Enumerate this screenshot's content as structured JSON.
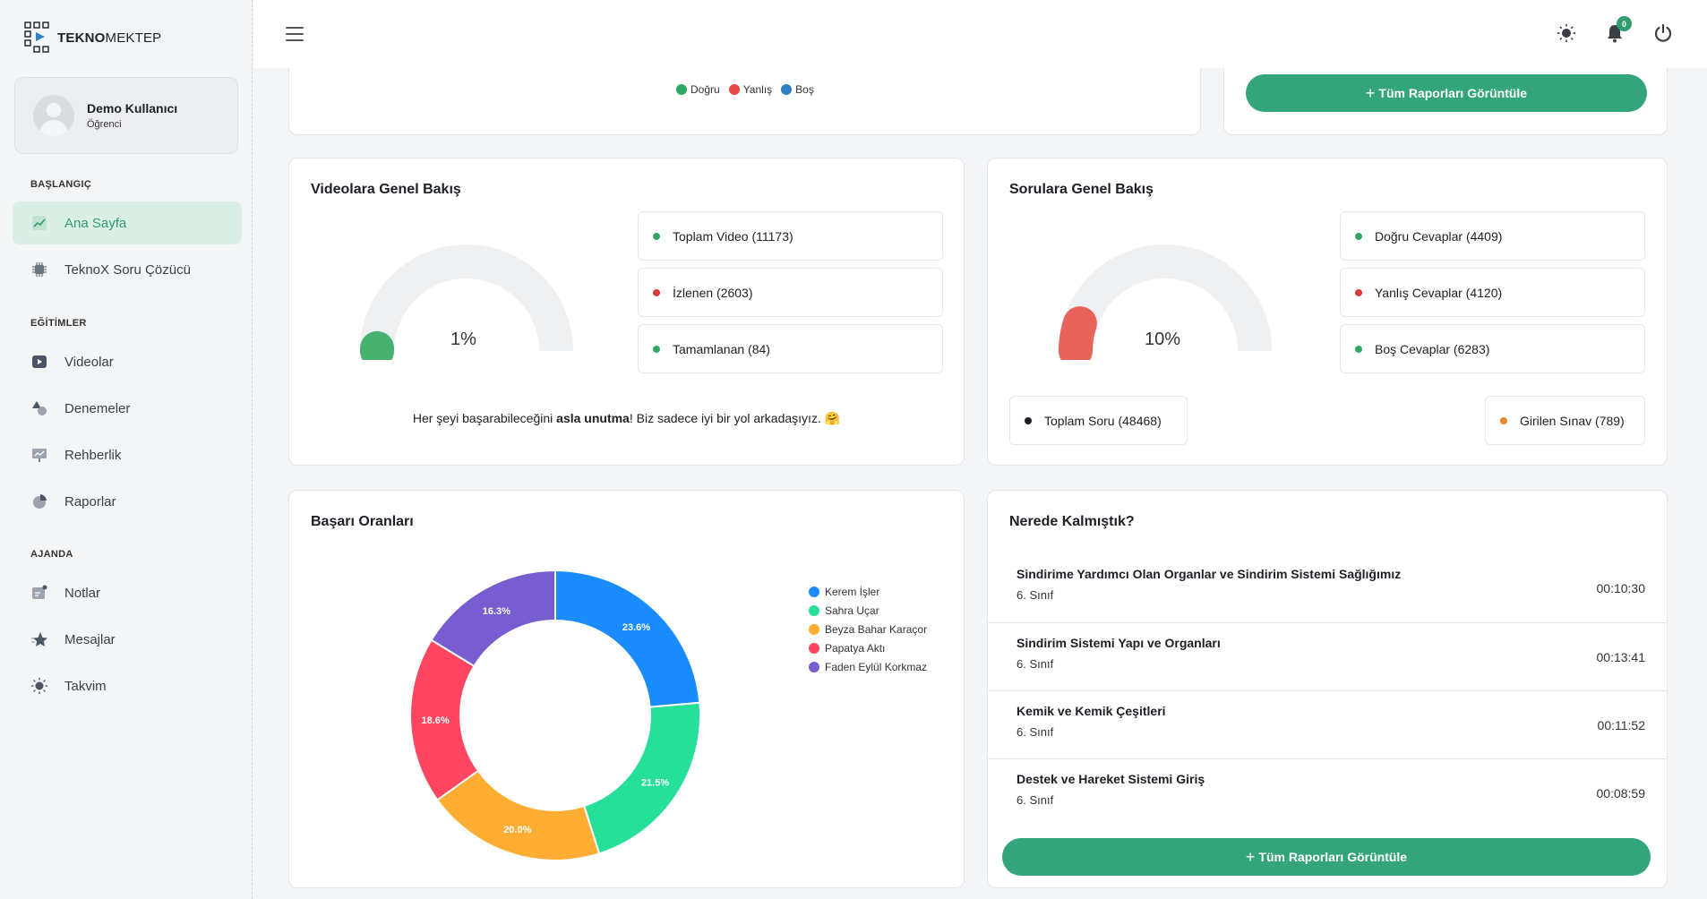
{
  "brand": {
    "name_bold": "TEKNO",
    "name_rest": "MEKTEP"
  },
  "profile": {
    "name": "Demo Kullanıcı",
    "role": "Öğrenci"
  },
  "sidebar": {
    "sections": [
      "BAŞLANGIÇ",
      "EĞİTİMLER",
      "AJANDA"
    ],
    "items": [
      {
        "label": "Ana Sayfa",
        "icon": "chart-icon",
        "active": true
      },
      {
        "label": "TeknoX Soru Çözücü",
        "icon": "chip-icon"
      },
      {
        "label": "Videolar",
        "icon": "video-icon"
      },
      {
        "label": "Denemeler",
        "icon": "shapes-icon"
      },
      {
        "label": "Rehberlik",
        "icon": "presentation-icon"
      },
      {
        "label": "Raporlar",
        "icon": "pie-icon"
      },
      {
        "label": "Notlar",
        "icon": "note-icon"
      },
      {
        "label": "Mesajlar",
        "icon": "star-chat-icon"
      },
      {
        "label": "Takvim",
        "icon": "sun-icon"
      }
    ]
  },
  "header": {
    "notification_count": "0"
  },
  "top_chart": {
    "legend": [
      "Doğru",
      "Yanlış",
      "Boş"
    ],
    "colors": [
      "#2fa866",
      "#e84545",
      "#2f7fc4"
    ]
  },
  "reports_button_top": "Tüm Raporları Görüntüle",
  "videos": {
    "title": "Videolara Genel Bakış",
    "gauge_value": "1%",
    "gauge_fraction": 0.01,
    "stats": [
      {
        "label": "Toplam Video (11173)",
        "color": "#2fa866"
      },
      {
        "label": "İzlenen (2603)",
        "color": "#d93a3a"
      },
      {
        "label": "Tamamlanan (84)",
        "color": "#2fa866"
      }
    ],
    "motto_pre": "Her şeyi başarabileceğini ",
    "motto_bold": "asla unutma",
    "motto_post": "! Biz sadece iyi bir yol arkadaşıyız. 🤗"
  },
  "questions": {
    "title": "Sorulara Genel Bakış",
    "gauge_value": "10%",
    "gauge_fraction": 0.1,
    "stats": [
      {
        "label": "Doğru Cevaplar (4409)",
        "color": "#2fa866"
      },
      {
        "label": "Yanlış Cevaplar (4120)",
        "color": "#d93a3a"
      },
      {
        "label": "Boş Cevaplar (6283)",
        "color": "#2fa866"
      }
    ],
    "total": {
      "label": "Toplam Soru (48468)",
      "color": "#1c1f24"
    },
    "exams": {
      "label": "Girilen Sınav (789)",
      "color": "#e8892b"
    }
  },
  "success": {
    "title": "Başarı Oranları"
  },
  "chart_data": {
    "type": "pie",
    "title": "Başarı Oranları",
    "categories": [
      "Kerem İşler",
      "Sahra Uçar",
      "Beyza Bahar Karaçor",
      "Papatya Aktı",
      "Faden Eylül Korkmaz"
    ],
    "values": [
      23.6,
      21.5,
      20.0,
      18.6,
      16.3
    ],
    "labels": [
      "23.6%",
      "21.5%",
      "20.0%",
      "18.6%",
      "16.3%"
    ],
    "colors": [
      "#1a8cff",
      "#26e09a",
      "#ffad33",
      "#ff4560",
      "#775dd0"
    ],
    "donut": true
  },
  "resume": {
    "title": "Nerede Kalmıştık?",
    "items": [
      {
        "title": "Sindirime Yardımcı Olan Organlar ve Sindirim Sistemi Sağlığımız",
        "grade": "6. Sınıf",
        "time": "00:10:30"
      },
      {
        "title": "Sindirim Sistemi Yapı ve Organları",
        "grade": "6. Sınıf",
        "time": "00:13:41"
      },
      {
        "title": "Kemik ve Kemik Çeşitleri",
        "grade": "6. Sınıf",
        "time": "00:11:52"
      },
      {
        "title": "Destek ve Hareket Sistemi Giriş",
        "grade": "6. Sınıf",
        "time": "00:08:59"
      }
    ],
    "button": "Tüm Raporları Görüntüle"
  }
}
